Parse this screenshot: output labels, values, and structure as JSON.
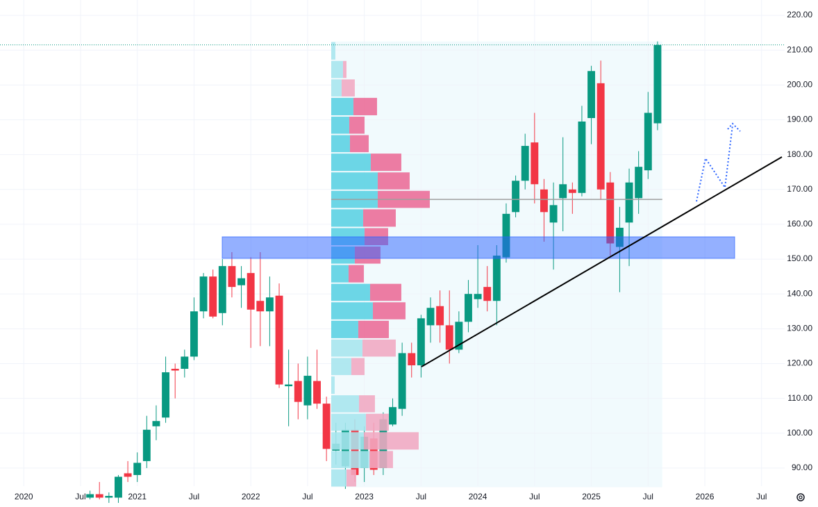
{
  "chart_data": {
    "type": "candlestick",
    "x": [
      "2020-08",
      "2020-09",
      "2020-10",
      "2020-11",
      "2020-12",
      "2021-01",
      "2021-02",
      "2021-03",
      "2021-04",
      "2021-05",
      "2021-06",
      "2021-07",
      "2021-08",
      "2021-09",
      "2021-10",
      "2021-11",
      "2021-12",
      "2022-01",
      "2022-02",
      "2022-03",
      "2022-04",
      "2022-05",
      "2022-06",
      "2022-07",
      "2022-08",
      "2022-09",
      "2022-10",
      "2022-11",
      "2022-12",
      "2023-01",
      "2023-02",
      "2023-03",
      "2023-04",
      "2023-05",
      "2023-06",
      "2023-07",
      "2023-08",
      "2023-09",
      "2023-10",
      "2023-11",
      "2023-12",
      "2024-01",
      "2024-02",
      "2024-03",
      "2024-04",
      "2024-05",
      "2024-06",
      "2024-07",
      "2024-08",
      "2024-09",
      "2024-10",
      "2024-11",
      "2024-12",
      "2025-01",
      "2025-02",
      "2025-03",
      "2025-04",
      "2025-05",
      "2025-06",
      "2025-07",
      "2025-08"
    ],
    "open": [
      81.5,
      82.5,
      81.5,
      81.5,
      88.5,
      88,
      92,
      102,
      104.5,
      118.5,
      118.5,
      122,
      135,
      145,
      134.5,
      148,
      142.5,
      146,
      138,
      135,
      139.5,
      113.5,
      115,
      108,
      115,
      108.5,
      95,
      90.5,
      101,
      90,
      98.5,
      90,
      102.5,
      107,
      123,
      119.5,
      131,
      136.5,
      131,
      124,
      132,
      138.5,
      142,
      138,
      150.5,
      163.5,
      172.5,
      183.5,
      170,
      160.5,
      167.5,
      170,
      169,
      190.5,
      200.5,
      172,
      153.5,
      160.5,
      167.5,
      175.5,
      189
    ],
    "high": [
      83.5,
      86,
      83,
      88,
      92,
      94.5,
      105,
      108,
      122,
      120,
      124,
      139,
      146,
      147,
      150,
      152,
      148,
      150.5,
      152,
      145,
      143,
      124,
      120,
      122,
      124,
      110.5,
      103,
      103,
      104,
      102,
      103,
      106,
      110,
      126,
      126,
      134,
      139,
      141,
      141,
      135,
      144,
      154,
      148,
      154,
      166,
      174,
      186,
      192,
      173,
      172,
      185,
      172,
      194,
      205.5,
      207,
      175,
      165,
      176,
      181,
      198,
      212.5
    ],
    "low": [
      81,
      81,
      80,
      80,
      86,
      86,
      90,
      98,
      103,
      110,
      116,
      121,
      133,
      133,
      131,
      139,
      136,
      124.5,
      125,
      125,
      113,
      102,
      104,
      104,
      107,
      92,
      91,
      84,
      86,
      86,
      88,
      88,
      102,
      105,
      116,
      116,
      126,
      126,
      120,
      123,
      129,
      136,
      135,
      131,
      149,
      162,
      170,
      166,
      155,
      147,
      158,
      163,
      168,
      183,
      167,
      151,
      140.5,
      148,
      163,
      173,
      187
    ],
    "close": [
      82.5,
      81.5,
      82,
      87.5,
      87.5,
      91.5,
      101,
      103.5,
      117.5,
      118,
      122,
      135,
      145,
      133.5,
      148,
      142,
      144.5,
      135.5,
      135,
      139,
      114,
      114,
      109,
      116.5,
      108.5,
      95.5,
      97,
      101,
      88,
      99,
      89.5,
      104,
      107.5,
      123,
      119.5,
      133,
      136,
      131,
      124,
      132,
      140,
      140,
      138,
      151,
      163,
      172.5,
      182.5,
      171.5,
      163.5,
      165.5,
      171.5,
      169,
      189.5,
      204,
      170,
      154.5,
      159,
      172,
      176.5,
      192,
      211.5
    ],
    "colors": {
      "up": "#089981",
      "down": "#f23645"
    },
    "xlim": [
      "2019-11",
      "2026-09"
    ],
    "xticks": [
      {
        "value": "2020-01",
        "label": "2020"
      },
      {
        "value": "2020-07",
        "label": "Jul"
      },
      {
        "value": "2021-01",
        "label": "2021"
      },
      {
        "value": "2021-07",
        "label": "Jul"
      },
      {
        "value": "2022-01",
        "label": "2022"
      },
      {
        "value": "2022-07",
        "label": "Jul"
      },
      {
        "value": "2023-01",
        "label": "2023"
      },
      {
        "value": "2023-07",
        "label": "Jul"
      },
      {
        "value": "2024-01",
        "label": "2024"
      },
      {
        "value": "2024-07",
        "label": "Jul"
      },
      {
        "value": "2025-01",
        "label": "2025"
      },
      {
        "value": "2025-07",
        "label": "Jul"
      },
      {
        "value": "2026-01",
        "label": "2026"
      },
      {
        "value": "2026-07",
        "label": "Jul"
      }
    ],
    "ylim": [
      84.8,
      224.4
    ],
    "yticks": [
      {
        "value": 90,
        "label": "90.00"
      },
      {
        "value": 100,
        "label": "100.00"
      },
      {
        "value": 110,
        "label": "110.00"
      },
      {
        "value": 120,
        "label": "120.00"
      },
      {
        "value": 130,
        "label": "130.00"
      },
      {
        "value": 140,
        "label": "140.00"
      },
      {
        "value": 150,
        "label": "150.00"
      },
      {
        "value": 160,
        "label": "160.00"
      },
      {
        "value": 170,
        "label": "170.00"
      },
      {
        "value": 180,
        "label": "180.00"
      },
      {
        "value": 190,
        "label": "190.00"
      },
      {
        "value": 200,
        "label": "200.00"
      },
      {
        "value": 210,
        "label": "210.00"
      },
      {
        "value": 220,
        "label": "220.00"
      }
    ],
    "grid": true,
    "volume_profile": {
      "start": "2022-10",
      "end": "2025-09",
      "bins": [
        84.5,
        89.8,
        95.1,
        100.5,
        105.8,
        111.1,
        116.5,
        121.8,
        127.1,
        132.5,
        137.8,
        143.1,
        148.5,
        153.8,
        159.1,
        164.5,
        169.8,
        175.1,
        180.5,
        185.8,
        191.1,
        196.5,
        201.8,
        207.1,
        212.5
      ],
      "up": [
        22,
        55,
        47,
        50,
        40,
        5,
        29,
        45,
        39,
        60,
        56,
        25,
        34,
        48,
        46,
        67,
        67,
        57,
        27,
        26,
        32,
        15,
        17,
        6
      ],
      "down": [
        14,
        34,
        79,
        33,
        23,
        0,
        19,
        48,
        44,
        47,
        45,
        22,
        37,
        34,
        47,
        75,
        46,
        44,
        27,
        22,
        34,
        19,
        5,
        0
      ],
      "value_area": [
        127.1,
        196.5
      ],
      "colors": {
        "up": "#5ad2e3",
        "down": "#ec6b97",
        "up_outside": "#a8e6ef",
        "down_outside": "#f2a9c2",
        "background": "#f1fafd",
        "poc": "#9e9e9e"
      }
    }
  }
}
